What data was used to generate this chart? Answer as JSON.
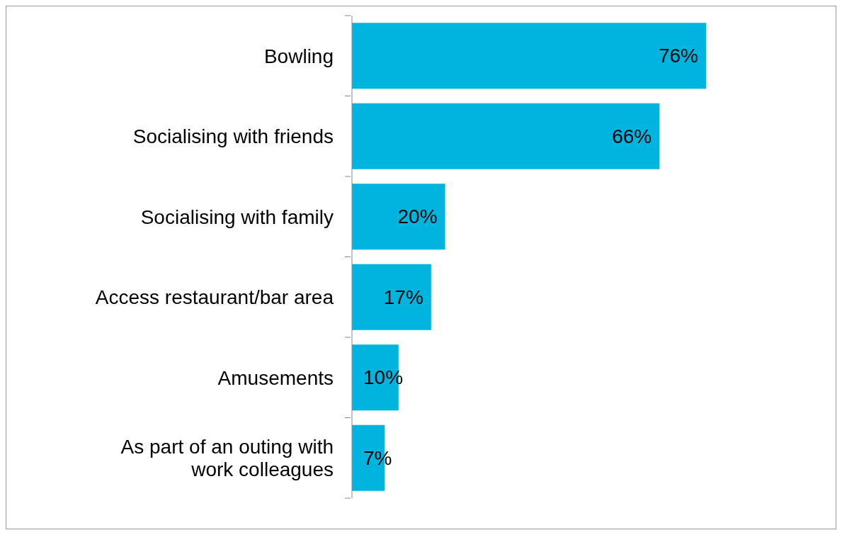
{
  "chart_data": {
    "type": "bar",
    "orientation": "horizontal",
    "categories": [
      "Bowling",
      "Socialising with friends",
      "Socialising with family",
      "Access restaurant/bar area",
      "Amusements",
      "As part of an outing with work colleagues"
    ],
    "values": [
      76,
      66,
      20,
      17,
      10,
      7
    ],
    "value_labels": [
      "76%",
      "66%",
      "20%",
      "17%",
      "10%",
      "7%"
    ],
    "color": "#00b4e0"
  }
}
